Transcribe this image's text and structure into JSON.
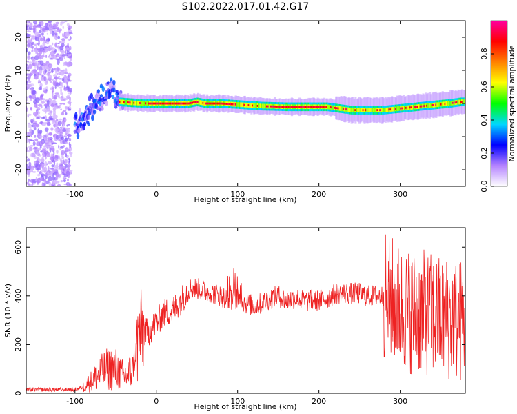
{
  "title": "S102.2022.017.01.42.G17",
  "chart_data": [
    {
      "type": "heatmap",
      "xlabel": "Height of straight line (km)",
      "ylabel": "Frequency (Hz)",
      "xlim": [
        -160,
        380
      ],
      "ylim": [
        -25,
        25
      ],
      "x_ticks": [
        -100,
        0,
        100,
        200,
        300
      ],
      "y_ticks": [
        -20,
        -10,
        0,
        10,
        20
      ],
      "grid": false,
      "colorbar": {
        "label": "Normalized spectral amplitude",
        "range": [
          0,
          1
        ],
        "ticks": [
          0.0,
          0.2,
          0.4,
          0.6,
          0.8
        ],
        "colors": [
          "#ffffff",
          "#b482ff",
          "#0000ff",
          "#00d8ff",
          "#00ff00",
          "#ffff00",
          "#ff8000",
          "#ff0000",
          "#ff00a0"
        ]
      },
      "ridge": {
        "x": [
          -95,
          -85,
          -75,
          -65,
          -55,
          -45,
          -30,
          -10,
          0,
          20,
          40,
          50,
          60,
          80,
          100,
          130,
          160,
          190,
          210,
          225,
          240,
          260,
          280,
          300,
          320,
          340,
          360,
          375
        ],
        "y": [
          -7,
          -3,
          0,
          2,
          3,
          0.5,
          0.2,
          0,
          0,
          0,
          0,
          0.5,
          0,
          0,
          -0.3,
          -0.8,
          -1,
          -1,
          -1,
          -1.5,
          -2,
          -2,
          -2,
          -1.5,
          -1,
          -0.5,
          0,
          0.5
        ]
      }
    },
    {
      "type": "line",
      "xlabel": "Height of straight line (km)",
      "ylabel": "SNR (10 * v/v)",
      "xlim": [
        -160,
        380
      ],
      "ylim": [
        0,
        680
      ],
      "x_ticks": [
        -100,
        0,
        100,
        200,
        300
      ],
      "y_ticks": [
        0,
        200,
        400,
        600
      ],
      "grid": false,
      "series": [
        {
          "color": "#ee2222",
          "x": [
            -160,
            -140,
            -120,
            -100,
            -90,
            -80,
            -70,
            -60,
            -50,
            -40,
            -30,
            -20,
            -10,
            0,
            10,
            20,
            30,
            40,
            50,
            60,
            70,
            80,
            90,
            100,
            110,
            120,
            130,
            140,
            150,
            160,
            170,
            180,
            190,
            200,
            210,
            220,
            230,
            240,
            250,
            260,
            270,
            280,
            290,
            300,
            310,
            320,
            330,
            340,
            350,
            360,
            370,
            378
          ],
          "y": [
            15,
            15,
            15,
            15,
            25,
            50,
            80,
            100,
            100,
            70,
            90,
            250,
            250,
            290,
            330,
            340,
            380,
            430,
            430,
            420,
            410,
            400,
            380,
            390,
            370,
            360,
            370,
            390,
            400,
            380,
            390,
            380,
            380,
            380,
            390,
            410,
            410,
            410,
            410,
            400,
            400,
            400,
            390,
            350,
            340,
            330,
            330,
            320,
            310,
            310,
            300,
            300
          ]
        }
      ]
    }
  ]
}
